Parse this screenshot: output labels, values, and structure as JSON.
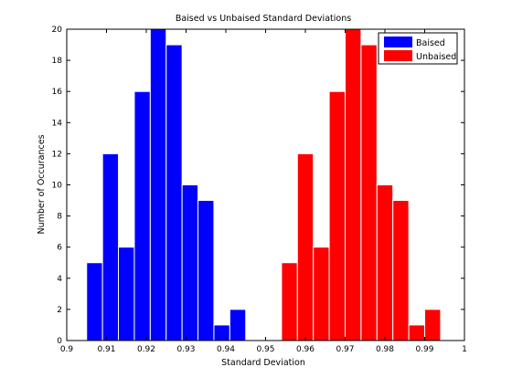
{
  "chart_data": {
    "type": "bar",
    "title": "Baised vs Unbaised Standard Deviations",
    "xlabel": "Standard Deviation",
    "ylabel": "Number of Occurances",
    "xlim": [
      0.9,
      1.0
    ],
    "ylim": [
      0,
      20
    ],
    "xticks": [
      "0.9",
      "0.91",
      "0.92",
      "0.93",
      "0.94",
      "0.95",
      "0.96",
      "0.97",
      "0.98",
      "0.99",
      "1"
    ],
    "yticks": [
      "0",
      "2",
      "4",
      "6",
      "8",
      "10",
      "12",
      "14",
      "16",
      "18",
      "20"
    ],
    "bin_width": 0.004,
    "grid": false,
    "legend_position": "top-right",
    "series": [
      {
        "name": "Baised",
        "color": "#0000ff",
        "x": [
          0.907,
          0.911,
          0.915,
          0.919,
          0.923,
          0.927,
          0.931,
          0.935,
          0.939,
          0.943
        ],
        "values": [
          5,
          12,
          6,
          16,
          20,
          19,
          10,
          9,
          1,
          2
        ]
      },
      {
        "name": "Unbaised",
        "color": "#ff0000",
        "x": [
          0.956,
          0.96,
          0.964,
          0.968,
          0.972,
          0.976,
          0.98,
          0.984,
          0.988,
          0.992
        ],
        "values": [
          5,
          12,
          6,
          16,
          20,
          19,
          10,
          9,
          1,
          2
        ]
      }
    ]
  }
}
